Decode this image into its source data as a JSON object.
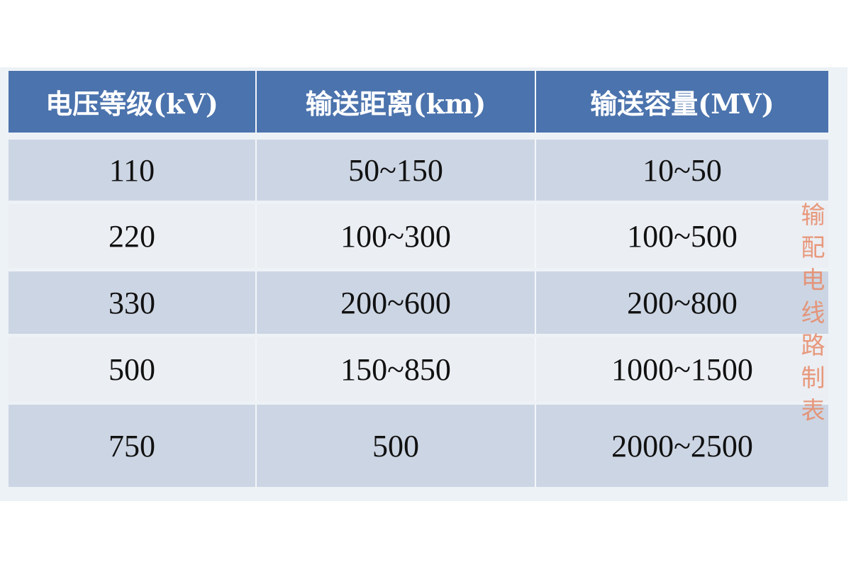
{
  "table": {
    "headers": [
      "电压等级(kV)",
      "输送距离(km)",
      "输送容量(MV)"
    ],
    "rows": [
      [
        "110",
        "50~150",
        "10~50"
      ],
      [
        "220",
        "100~300",
        "100~500"
      ],
      [
        "330",
        "200~600",
        "200~800"
      ],
      [
        "500",
        "150~850",
        "1000~1500"
      ],
      [
        "750",
        "500",
        "2000~2500"
      ]
    ]
  },
  "watermark": {
    "side_text": "输配电线路制表"
  },
  "colors": {
    "header_bg": "#4b73ad",
    "row_dark": "#ccd5e3",
    "row_light": "#ebeef3",
    "watermark": "#e88a68"
  }
}
